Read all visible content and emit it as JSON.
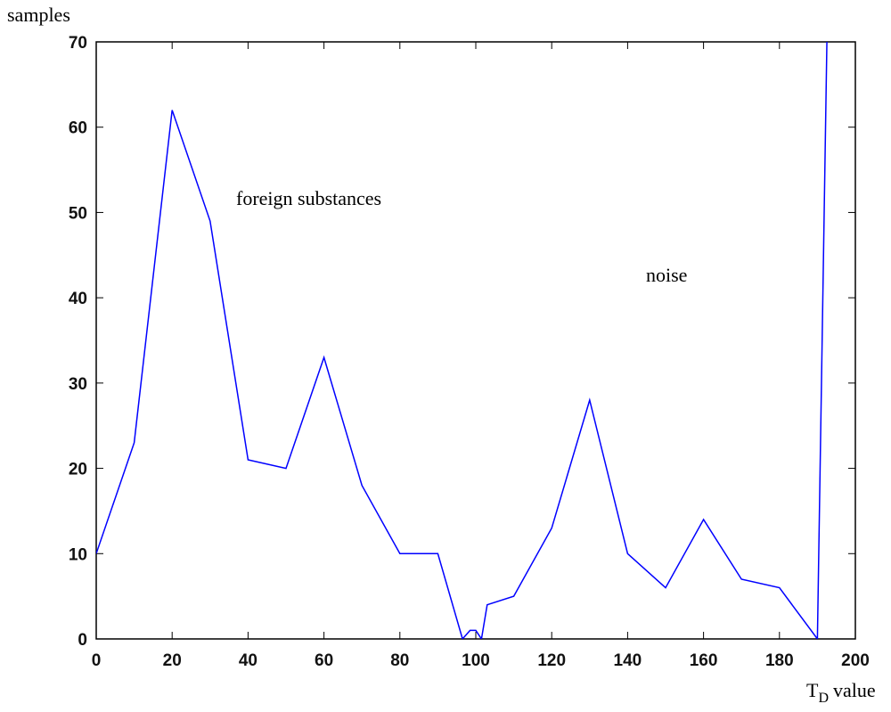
{
  "chart_data": {
    "type": "line",
    "ylabel": "samples",
    "xlabel": "T",
    "xlabel_subscript": "D",
    "xlabel_suffix": "value",
    "annotations": [
      "foreign substances",
      "noise"
    ],
    "x": [
      0,
      10,
      20,
      30,
      40,
      50,
      60,
      70,
      80,
      90,
      96.5,
      98.5,
      100,
      101.5,
      103,
      110,
      120,
      130,
      140,
      150,
      160,
      170,
      180,
      190,
      192.5
    ],
    "series": [
      {
        "name": "samples",
        "color": "#0000ff",
        "values": [
          10,
          23,
          62,
          49,
          21,
          20,
          33,
          18,
          10,
          10,
          0,
          1,
          1,
          0,
          4,
          5,
          13,
          28,
          10,
          6,
          14,
          7,
          6,
          0,
          70
        ]
      }
    ],
    "xlim": [
      0,
      200
    ],
    "xticks": [
      0,
      20,
      40,
      60,
      80,
      100,
      120,
      140,
      160,
      180,
      200
    ],
    "ylim": [
      0,
      70
    ],
    "yticks": [
      0,
      10,
      20,
      30,
      40,
      50,
      60,
      70
    ]
  }
}
